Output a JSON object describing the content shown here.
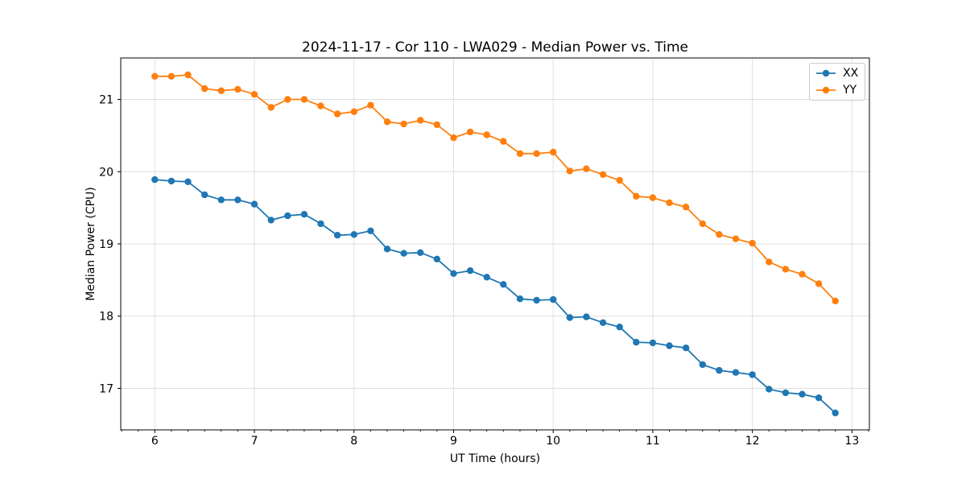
{
  "figure": {
    "background": "#ffffff",
    "spine_color": "#000000",
    "grid_color": "#dfdfdf"
  },
  "chart_data": {
    "type": "line",
    "title": "2024-11-17 - Cor 110 - LWA029 - Median Power vs. Time",
    "xlabel": "UT Time (hours)",
    "ylabel": "Median Power (CPU)",
    "xlim": [
      5.658,
      13.175
    ],
    "ylim": [
      16.426,
      21.574
    ],
    "xticks": [
      6,
      7,
      8,
      9,
      10,
      11,
      12,
      13
    ],
    "yticks": [
      17,
      18,
      19,
      20,
      21
    ],
    "x_minor_step": 0.166667,
    "grid": true,
    "legend_position": "upper right",
    "marker": "o",
    "x": [
      6.0,
      6.1667,
      6.3333,
      6.5,
      6.6667,
      6.8333,
      7.0,
      7.1667,
      7.3333,
      7.5,
      7.6667,
      7.8333,
      8.0,
      8.1667,
      8.3333,
      8.5,
      8.6667,
      8.8333,
      9.0,
      9.1667,
      9.3333,
      9.5,
      9.6667,
      9.8333,
      10.0,
      10.1667,
      10.3333,
      10.5,
      10.6667,
      10.8333,
      11.0,
      11.1667,
      11.3333,
      11.5,
      11.6667,
      11.8333,
      12.0,
      12.1667,
      12.3333,
      12.5,
      12.6667,
      12.8333
    ],
    "series": [
      {
        "name": "XX",
        "color": "#1f77b4",
        "values": [
          19.89,
          19.87,
          19.86,
          19.68,
          19.61,
          19.61,
          19.55,
          19.33,
          19.39,
          19.41,
          19.28,
          19.12,
          19.13,
          19.18,
          18.93,
          18.87,
          18.88,
          18.79,
          18.59,
          18.63,
          18.54,
          18.44,
          18.24,
          18.22,
          18.23,
          17.98,
          17.99,
          17.91,
          17.85,
          17.64,
          17.63,
          17.59,
          17.56,
          17.33,
          17.25,
          17.22,
          17.19,
          16.99,
          16.94,
          16.92,
          16.87,
          16.66
        ]
      },
      {
        "name": "YY",
        "color": "#ff7f0e",
        "values": [
          21.32,
          21.32,
          21.34,
          21.15,
          21.12,
          21.14,
          21.07,
          20.89,
          21.0,
          21.0,
          20.91,
          20.8,
          20.83,
          20.92,
          20.69,
          20.66,
          20.71,
          20.65,
          20.47,
          20.55,
          20.51,
          20.42,
          20.25,
          20.25,
          20.27,
          20.01,
          20.04,
          19.96,
          19.88,
          19.66,
          19.64,
          19.57,
          19.51,
          19.28,
          19.13,
          19.07,
          19.01,
          18.75,
          18.65,
          18.58,
          18.45,
          18.21
        ]
      }
    ]
  }
}
